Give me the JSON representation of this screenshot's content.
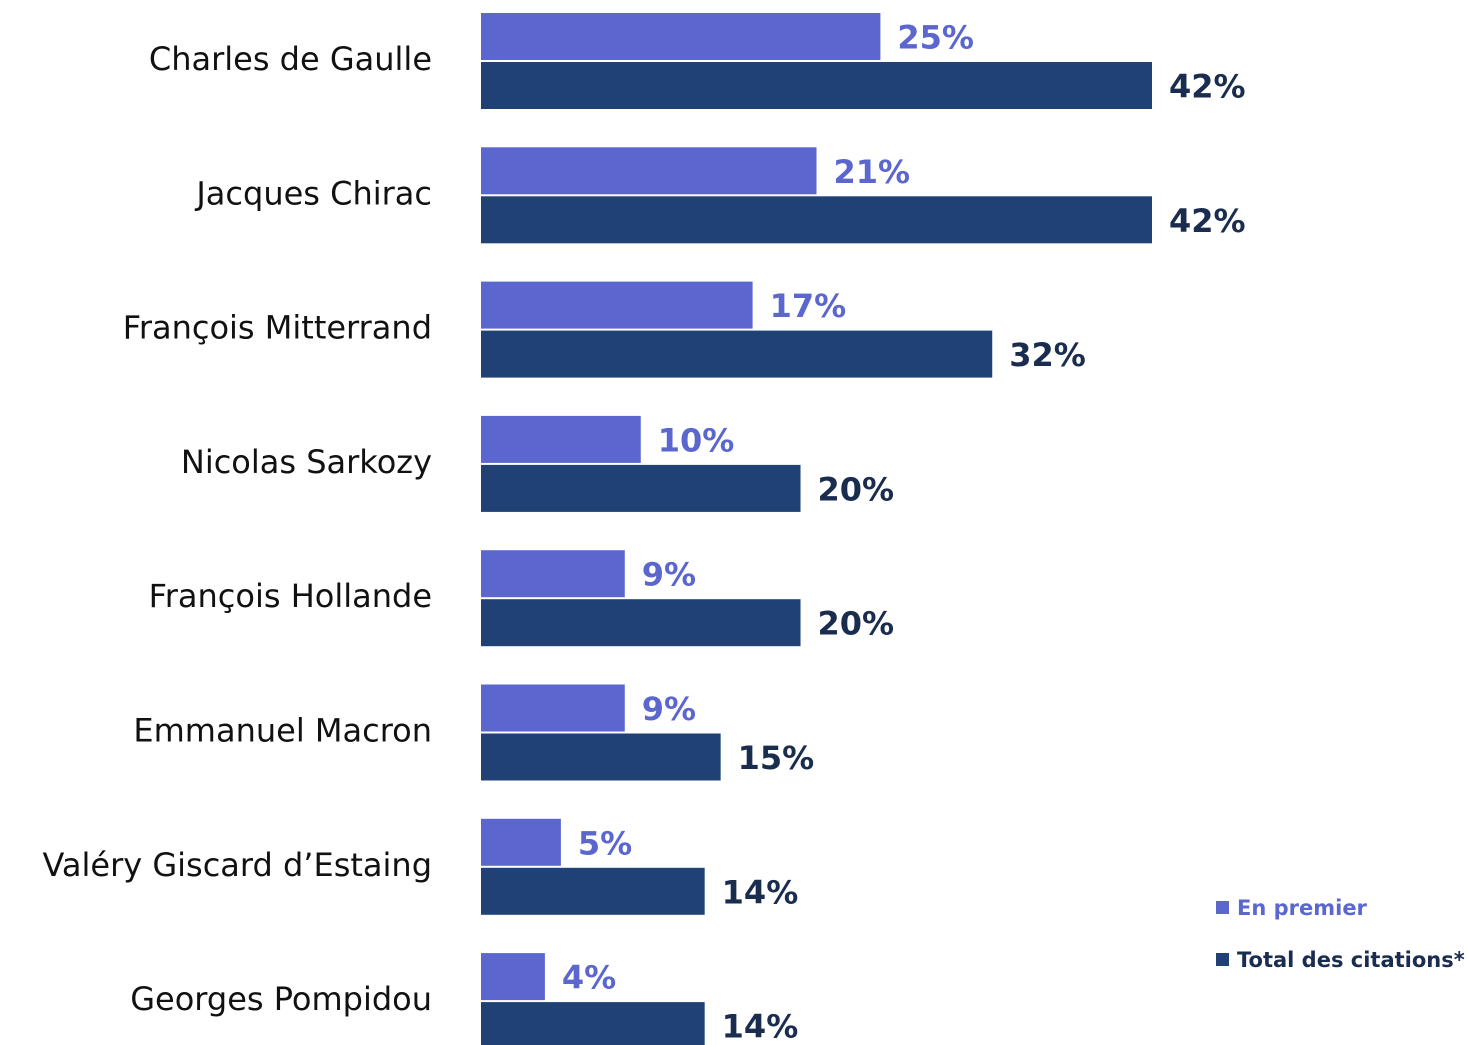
{
  "chart_data": {
    "type": "barh",
    "categories": [
      "Charles de Gaulle",
      "Jacques Chirac",
      "François Mitterrand",
      "Nicolas Sarkozy",
      "François Hollande",
      "Emmanuel Macron",
      "Valéry Giscard d’Estaing",
      "Georges Pompidou"
    ],
    "series": [
      {
        "name": "En premier",
        "color": "#5b67cf",
        "label_color": "#5b67cf",
        "values": [
          25,
          21,
          17,
          10,
          9,
          9,
          5,
          4
        ],
        "value_labels": [
          "25%",
          "21%",
          "17%",
          "10%",
          "9%",
          "9%",
          "5%",
          "4%"
        ]
      },
      {
        "name": "Total des citations*",
        "color": "#1f4174",
        "label_color": "#1b2d4f",
        "values": [
          42,
          42,
          32,
          20,
          20,
          15,
          14,
          14
        ],
        "value_labels": [
          "42%",
          "42%",
          "32%",
          "20%",
          "20%",
          "15%",
          "14%",
          "14%"
        ]
      }
    ]
  }
}
